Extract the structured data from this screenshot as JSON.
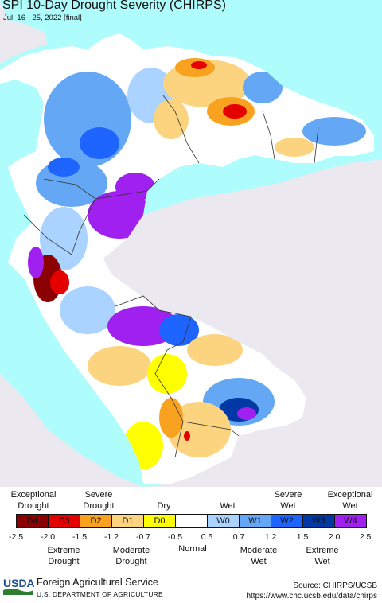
{
  "map": {
    "title": "SPI 10-Day Drought Severity (CHIRPS)",
    "subtitle": "Jul. 16 - 25, 2022 [final]",
    "colors": {
      "ocean": "#aefcfc",
      "land_outside": "#ebe8ef",
      "normal": "#ffffff"
    }
  },
  "legend": {
    "top_labels": [
      {
        "text": "Exceptional\nDrought"
      },
      {
        "text": "Severe\nDrought"
      },
      {
        "text": "Dry"
      },
      {
        "text": "Wet"
      },
      {
        "text": "Severe\nWet"
      },
      {
        "text": "Exceptional\nWet"
      }
    ],
    "categories": [
      {
        "code": "D4",
        "color": "#8b0000"
      },
      {
        "code": "D3",
        "color": "#e50000"
      },
      {
        "code": "D2",
        "color": "#f9a21f"
      },
      {
        "code": "D1",
        "color": "#fcd37f"
      },
      {
        "code": "D0",
        "color": "#ffff00"
      },
      {
        "code": "",
        "color": "#ffffff"
      },
      {
        "code": "W0",
        "color": "#aad3ff"
      },
      {
        "code": "W1",
        "color": "#64a8f5"
      },
      {
        "code": "W2",
        "color": "#1e64ff"
      },
      {
        "code": "W3",
        "color": "#0039a6"
      },
      {
        "code": "W4",
        "color": "#a020f0"
      }
    ],
    "ticks": [
      "-2.5",
      "-2.0",
      "-1.5",
      "-1.2",
      "-0.7",
      "-0.5",
      "0.5",
      "0.7",
      "1.2",
      "1.5",
      "2.0",
      "2.5"
    ],
    "bottom_labels": [
      {
        "text": "Extreme\nDrought"
      },
      {
        "text": "Moderate\nDrought"
      },
      {
        "text": "Normal"
      },
      {
        "text": "Moderate\nWet"
      },
      {
        "text": "Extreme\nWet"
      }
    ]
  },
  "footer": {
    "logo_text": "USDA",
    "agency": "Foreign Agricultural Service",
    "department": "U.S. DEPARTMENT OF AGRICULTURE",
    "source": "Source: CHIRPS/UCSB",
    "url": "https://www.chc.ucsb.edu/data/chirps"
  }
}
